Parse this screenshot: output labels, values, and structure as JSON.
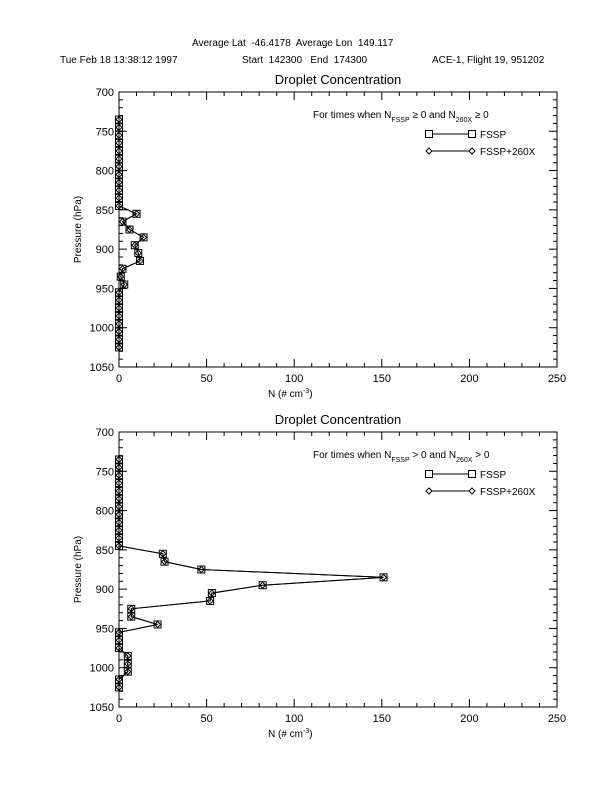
{
  "header": {
    "location": "Average Lat  -46.4178  Average Lon  149.117",
    "date": "Tue Feb 18 13:38:12 1997",
    "times": "Start  142300   End  174300",
    "flight": "ACE-1, Flight 19, 951202"
  },
  "chart_data": [
    {
      "type": "line",
      "title": "Droplet Concentration",
      "xlabel": "N (# cm-3)",
      "xlabel_main": "N (# cm",
      "xlabel_sup": "-3",
      "xlabel_close": ")",
      "ylabel": "Pressure (hPa)",
      "xlim": [
        0,
        250
      ],
      "ylim": [
        1050,
        700
      ],
      "y_inverted": true,
      "xticks": [
        "0",
        "50",
        "100",
        "150",
        "200",
        "250"
      ],
      "yticks": [
        "700",
        "750",
        "800",
        "850",
        "900",
        "950",
        "1000",
        "1050"
      ],
      "grid": false,
      "legend_position": "top-right",
      "condition": {
        "prefix": "For times when N",
        "sub1": "FSSP",
        "mid": " ≥ 0 and N",
        "sub2": "260X",
        "suffix": " ≥ 0"
      },
      "series": [
        {
          "name": "FSSP",
          "marker": "square",
          "points": [
            [
              0,
              735
            ],
            [
              0,
              745
            ],
            [
              0,
              755
            ],
            [
              0,
              765
            ],
            [
              0,
              775
            ],
            [
              0,
              785
            ],
            [
              0,
              795
            ],
            [
              0,
              805
            ],
            [
              0,
              815
            ],
            [
              0,
              825
            ],
            [
              0,
              835
            ],
            [
              0,
              845
            ],
            [
              10,
              855
            ],
            [
              2,
              865
            ],
            [
              6,
              875
            ],
            [
              14,
              885
            ],
            [
              9,
              895
            ],
            [
              11,
              905
            ],
            [
              12,
              915
            ],
            [
              2,
              925
            ],
            [
              1,
              935
            ],
            [
              3,
              945
            ],
            [
              0,
              955
            ],
            [
              0,
              965
            ],
            [
              0,
              975
            ],
            [
              0,
              985
            ],
            [
              0,
              995
            ],
            [
              0,
              1005
            ],
            [
              0,
              1015
            ],
            [
              0,
              1025
            ]
          ]
        },
        {
          "name": "FSSP+260X",
          "marker": "diamond",
          "points": [
            [
              0,
              735
            ],
            [
              0,
              745
            ],
            [
              0,
              755
            ],
            [
              0,
              765
            ],
            [
              0,
              775
            ],
            [
              0,
              785
            ],
            [
              0,
              795
            ],
            [
              0,
              805
            ],
            [
              0,
              815
            ],
            [
              0,
              825
            ],
            [
              0,
              835
            ],
            [
              0,
              845
            ],
            [
              10,
              855
            ],
            [
              2,
              865
            ],
            [
              6,
              875
            ],
            [
              14,
              885
            ],
            [
              9,
              895
            ],
            [
              11,
              905
            ],
            [
              12,
              915
            ],
            [
              2,
              925
            ],
            [
              1,
              935
            ],
            [
              3,
              945
            ],
            [
              0,
              955
            ],
            [
              0,
              965
            ],
            [
              0,
              975
            ],
            [
              0,
              985
            ],
            [
              0,
              995
            ],
            [
              0,
              1005
            ],
            [
              0,
              1015
            ],
            [
              0,
              1025
            ]
          ]
        }
      ]
    },
    {
      "type": "line",
      "title": "Droplet Concentration",
      "xlabel": "N (# cm-3)",
      "xlabel_main": "N (# cm",
      "xlabel_sup": "-3",
      "xlabel_close": ")",
      "ylabel": "Pressure (hPa)",
      "xlim": [
        0,
        250
      ],
      "ylim": [
        1050,
        700
      ],
      "y_inverted": true,
      "xticks": [
        "0",
        "50",
        "100",
        "150",
        "200",
        "250"
      ],
      "yticks": [
        "700",
        "750",
        "800",
        "850",
        "900",
        "950",
        "1000",
        "1050"
      ],
      "grid": false,
      "legend_position": "top-right",
      "condition": {
        "prefix": "For times when N",
        "sub1": "FSSP",
        "mid": " > 0 and N",
        "sub2": "260X",
        "suffix": " > 0"
      },
      "series": [
        {
          "name": "FSSP",
          "marker": "square",
          "points": [
            [
              0,
              735
            ],
            [
              0,
              745
            ],
            [
              0,
              755
            ],
            [
              0,
              765
            ],
            [
              0,
              775
            ],
            [
              0,
              785
            ],
            [
              0,
              795
            ],
            [
              0,
              805
            ],
            [
              0,
              815
            ],
            [
              0,
              825
            ],
            [
              0,
              835
            ],
            [
              0,
              845
            ],
            [
              25,
              855
            ],
            [
              26,
              865
            ],
            [
              47,
              875
            ],
            [
              151,
              885
            ],
            [
              82,
              895
            ],
            [
              53,
              905
            ],
            [
              52,
              915
            ],
            [
              7,
              925
            ],
            [
              7,
              935
            ],
            [
              22,
              945
            ],
            [
              0,
              955
            ],
            [
              0,
              965
            ],
            [
              0,
              975
            ],
            [
              5,
              985
            ],
            [
              5,
              995
            ],
            [
              5,
              1005
            ],
            [
              0,
              1015
            ],
            [
              0,
              1025
            ]
          ]
        },
        {
          "name": "FSSP+260X",
          "marker": "diamond",
          "points": [
            [
              0,
              735
            ],
            [
              0,
              745
            ],
            [
              0,
              755
            ],
            [
              0,
              765
            ],
            [
              0,
              775
            ],
            [
              0,
              785
            ],
            [
              0,
              795
            ],
            [
              0,
              805
            ],
            [
              0,
              815
            ],
            [
              0,
              825
            ],
            [
              0,
              835
            ],
            [
              0,
              845
            ],
            [
              25,
              855
            ],
            [
              26,
              865
            ],
            [
              47,
              875
            ],
            [
              151,
              885
            ],
            [
              82,
              895
            ],
            [
              53,
              905
            ],
            [
              52,
              915
            ],
            [
              7,
              925
            ],
            [
              7,
              935
            ],
            [
              22,
              945
            ],
            [
              0,
              955
            ],
            [
              0,
              965
            ],
            [
              0,
              975
            ],
            [
              5,
              985
            ],
            [
              5,
              995
            ],
            [
              5,
              1005
            ],
            [
              0,
              1015
            ],
            [
              0,
              1025
            ]
          ]
        }
      ]
    }
  ]
}
